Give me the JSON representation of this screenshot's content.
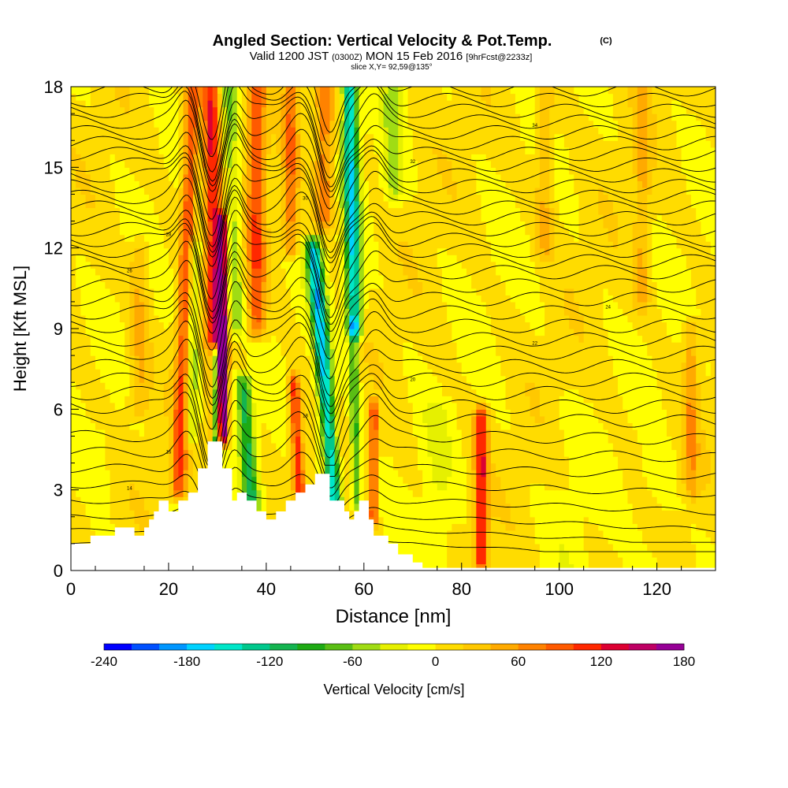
{
  "chart_data": {
    "type": "heatmap",
    "title": "Angled Section: Vertical Velocity & Pot.Temp.",
    "title_mark": "(C)",
    "subtitle_parts": [
      "Valid 1200 JST",
      "(0300Z)",
      "MON 15 Feb 2016",
      "[9hrFcst@2233z]"
    ],
    "slice_label": "slice X,Y= 92,59@135°",
    "xlabel": "Distance [nm]",
    "ylabel": "Height [Kft MSL]",
    "xlim": [
      0,
      132
    ],
    "ylim": [
      0,
      18
    ],
    "x_ticks": [
      0,
      20,
      40,
      60,
      80,
      100,
      120
    ],
    "x_tick_labels": [
      "0",
      "20",
      "40",
      "60",
      "80",
      "100",
      "120"
    ],
    "y_ticks": [
      0,
      3,
      6,
      9,
      12,
      15,
      18
    ],
    "y_tick_labels": [
      "0",
      "3",
      "6",
      "9",
      "12",
      "15",
      "18"
    ],
    "colorbar": {
      "label": "Vertical Velocity [cm/s]",
      "min": -240,
      "max": 180,
      "step": 20,
      "tick_values": [
        -240,
        -180,
        -120,
        -60,
        0,
        60,
        120,
        180
      ],
      "tick_labels": [
        "-240",
        "-180",
        "-120",
        "-60",
        "0",
        "60",
        "120",
        "180"
      ],
      "colors": [
        "#0000ff",
        "#0050ff",
        "#0096ff",
        "#00d2ff",
        "#00e6c8",
        "#00c88c",
        "#14b450",
        "#1eaa14",
        "#5abe14",
        "#a0dc14",
        "#e6f000",
        "#ffff00",
        "#ffdc00",
        "#ffc800",
        "#ffaa00",
        "#ff8200",
        "#ff5a00",
        "#ff2800",
        "#dc0032",
        "#be0064",
        "#960096"
      ]
    },
    "terrain": [
      [
        0,
        1
      ],
      [
        4,
        1
      ],
      [
        4,
        1.3
      ],
      [
        9,
        1.3
      ],
      [
        9,
        1.6
      ],
      [
        13,
        1.6
      ],
      [
        13,
        1.3
      ],
      [
        15,
        1.3
      ],
      [
        15,
        1.6
      ],
      [
        16,
        1.6
      ],
      [
        16,
        1.9
      ],
      [
        17,
        1.9
      ],
      [
        17,
        2.2
      ],
      [
        18,
        2.2
      ],
      [
        18,
        2.6
      ],
      [
        20,
        2.6
      ],
      [
        20,
        2.2
      ],
      [
        22,
        2.2
      ],
      [
        22,
        2.6
      ],
      [
        24,
        2.6
      ],
      [
        24,
        2.9
      ],
      [
        26,
        2.9
      ],
      [
        26,
        3.8
      ],
      [
        28,
        3.8
      ],
      [
        28,
        4.8
      ],
      [
        31,
        4.8
      ],
      [
        31,
        3.8
      ],
      [
        33,
        3.8
      ],
      [
        33,
        2.6
      ],
      [
        34,
        2.6
      ],
      [
        34,
        2.9
      ],
      [
        36,
        2.9
      ],
      [
        36,
        2.6
      ],
      [
        38,
        2.6
      ],
      [
        38,
        2.2
      ],
      [
        40,
        2.2
      ],
      [
        40,
        1.9
      ],
      [
        42,
        1.9
      ],
      [
        42,
        2.2
      ],
      [
        44,
        2.2
      ],
      [
        44,
        2.6
      ],
      [
        46,
        2.6
      ],
      [
        46,
        2.9
      ],
      [
        48,
        2.9
      ],
      [
        48,
        3.2
      ],
      [
        50,
        3.2
      ],
      [
        50,
        3.6
      ],
      [
        53,
        3.6
      ],
      [
        53,
        2.6
      ],
      [
        56,
        2.6
      ],
      [
        56,
        2.2
      ],
      [
        57,
        2.2
      ],
      [
        57,
        1.9
      ],
      [
        58,
        1.9
      ],
      [
        58,
        2.2
      ],
      [
        59,
        2.2
      ],
      [
        59,
        2.6
      ],
      [
        61,
        2.6
      ],
      [
        61,
        1.9
      ],
      [
        62,
        1.9
      ],
      [
        62,
        1.3
      ],
      [
        65,
        1.3
      ],
      [
        65,
        1.0
      ],
      [
        67,
        1.0
      ],
      [
        67,
        0.6
      ],
      [
        70,
        0.6
      ],
      [
        70,
        0.3
      ],
      [
        72,
        0.3
      ],
      [
        72,
        0.1
      ],
      [
        132,
        0.1
      ],
      [
        132,
        0
      ],
      [
        0,
        0
      ]
    ],
    "velocity_features": [
      {
        "x": 22,
        "half_width": 1.5,
        "y_bottom": 3,
        "y_top": 18,
        "slope": 0.2,
        "value": 100
      },
      {
        "x": 24.5,
        "half_width": 1.3,
        "y_bottom": 5,
        "y_top": 12,
        "slope": 0.1,
        "value": -70
      },
      {
        "x": 30,
        "half_width": 1.8,
        "y_bottom": 5,
        "y_top": 18,
        "slope": -0.1,
        "value": 120
      },
      {
        "x": 31,
        "half_width": 1.0,
        "y_bottom": 5,
        "y_top": 13,
        "slope": 0.0,
        "value": 150
      },
      {
        "x": 30,
        "half_width": 0.9,
        "y_bottom": 3,
        "y_top": 8,
        "slope": -0.1,
        "value": -200
      },
      {
        "x": 34,
        "half_width": 1.6,
        "y_bottom": 9,
        "y_top": 18,
        "slope": -0.2,
        "value": -60
      },
      {
        "x": 37,
        "half_width": 1.6,
        "y_bottom": 2.5,
        "y_top": 7,
        "slope": -0.4,
        "value": -110
      },
      {
        "x": 38,
        "half_width": 1.8,
        "y_bottom": 9,
        "y_top": 18,
        "slope": 0.0,
        "value": 90
      },
      {
        "x": 47,
        "half_width": 1.2,
        "y_bottom": 2.5,
        "y_top": 7,
        "slope": -0.3,
        "value": 110
      },
      {
        "x": 45,
        "half_width": 1.5,
        "y_bottom": 12,
        "y_top": 18,
        "slope": 0.0,
        "value": 70
      },
      {
        "x": 54,
        "half_width": 1.6,
        "y_bottom": 2.5,
        "y_top": 12,
        "slope": -0.45,
        "value": -170
      },
      {
        "x": 58,
        "half_width": 1.6,
        "y_bottom": 9,
        "y_top": 18,
        "slope": -0.1,
        "value": -160
      },
      {
        "x": 58.5,
        "half_width": 1.0,
        "y_bottom": 2.5,
        "y_top": 9,
        "slope": -0.1,
        "value": -90
      },
      {
        "x": 62,
        "half_width": 0.8,
        "y_bottom": 2,
        "y_top": 6,
        "slope": 0.0,
        "value": 110
      },
      {
        "x": 66,
        "half_width": 2.0,
        "y_bottom": 14,
        "y_top": 18,
        "slope": 0.0,
        "value": -50
      },
      {
        "x": 52,
        "half_width": 2.0,
        "y_bottom": 13,
        "y_top": 18,
        "slope": 0.0,
        "value": 70
      },
      {
        "x": 84,
        "half_width": 1.3,
        "y_bottom": 0.3,
        "y_top": 5.8,
        "slope": 0.0,
        "value": 120
      },
      {
        "x": 75,
        "half_width": 3.0,
        "y_bottom": 0,
        "y_top": 6,
        "slope": 0.0,
        "value": -20
      },
      {
        "x": 102,
        "half_width": 4.0,
        "y_bottom": 0,
        "y_top": 6,
        "slope": 0.0,
        "value": -10
      },
      {
        "x": 120,
        "half_width": 4.0,
        "y_bottom": 0,
        "y_top": 4,
        "slope": 0.0,
        "value": -15
      },
      {
        "x": 127,
        "half_width": 1.5,
        "y_bottom": 3,
        "y_top": 9,
        "slope": 0.0,
        "value": 50
      },
      {
        "x": 97,
        "half_width": 1.8,
        "y_bottom": 12,
        "y_top": 18,
        "slope": 0.0,
        "value": 40
      },
      {
        "x": 117,
        "half_width": 1.6,
        "y_bottom": 10,
        "y_top": 18,
        "slope": 0.0,
        "value": 40
      },
      {
        "x": 14,
        "half_width": 2.0,
        "y_bottom": 6,
        "y_top": 12,
        "slope": 0.0,
        "value": 40
      },
      {
        "x": 6,
        "half_width": 1.5,
        "y_bottom": 1,
        "y_top": 5,
        "slope": 0.0,
        "value": -15
      }
    ],
    "isentropes": {
      "base": [
        1.0,
        1.5,
        2.0,
        2.6,
        3.2,
        3.8,
        4.4,
        5.0,
        5.6,
        6.1,
        6.6,
        7.1,
        7.6,
        8.1,
        8.6,
        9.1,
        9.6,
        10.1,
        10.6,
        11.1,
        11.5,
        11.9,
        12.3,
        12.7,
        13.1,
        13.5,
        13.9,
        14.3,
        14.7,
        15.1,
        15.5,
        15.9,
        16.3,
        16.7,
        17.1,
        17.5,
        17.9
      ],
      "labels": [
        "14",
        "16",
        "18",
        "20",
        "22",
        "24",
        "26",
        "28",
        "30",
        "32",
        "34"
      ]
    }
  }
}
